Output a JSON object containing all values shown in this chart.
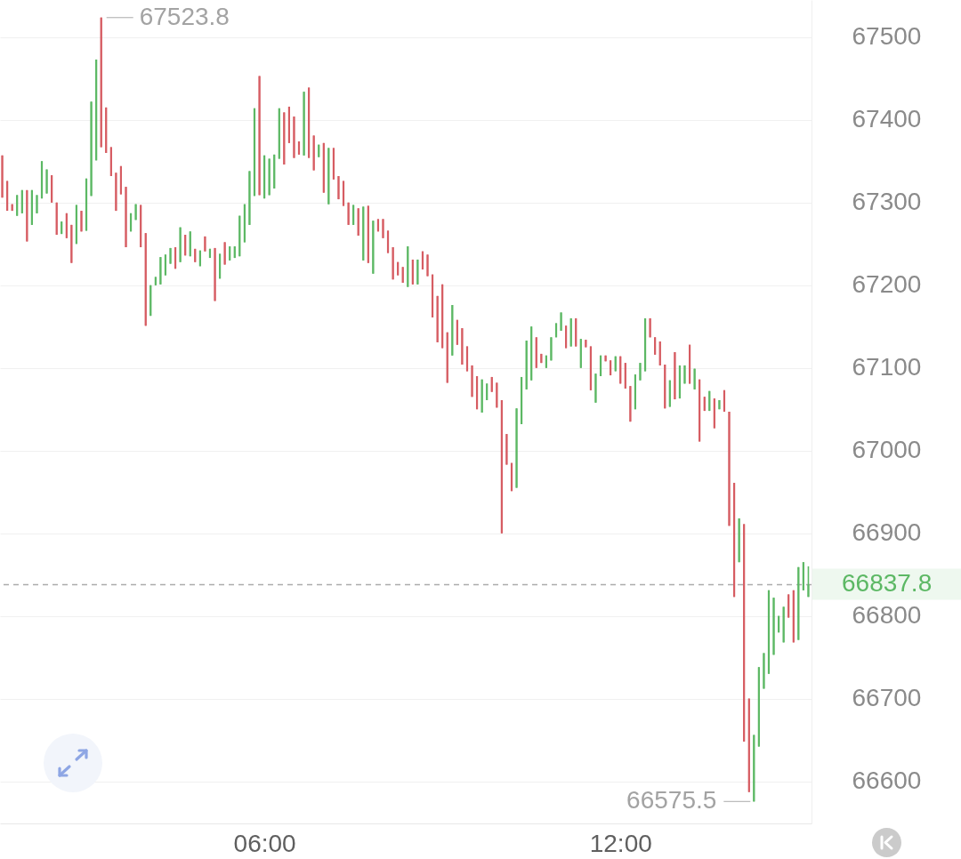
{
  "chart_data": {
    "type": "candlestick",
    "x": [
      1.583,
      1.667,
      1.75,
      1.833,
      1.917,
      2,
      2.083,
      2.167,
      2.25,
      2.333,
      2.417,
      2.5,
      2.583,
      2.667,
      2.75,
      2.833,
      2.917,
      3,
      3.083,
      3.167,
      3.25,
      3.333,
      3.417,
      3.5,
      3.583,
      3.667,
      3.75,
      3.833,
      3.917,
      4,
      4.083,
      4.167,
      4.25,
      4.333,
      4.417,
      4.5,
      4.583,
      4.667,
      4.75,
      4.833,
      4.917,
      5,
      5.083,
      5.167,
      5.25,
      5.333,
      5.417,
      5.5,
      5.583,
      5.667,
      5.75,
      5.833,
      5.917,
      6,
      6.083,
      6.167,
      6.25,
      6.333,
      6.417,
      6.5,
      6.583,
      6.667,
      6.75,
      6.833,
      6.917,
      7,
      7.083,
      7.167,
      7.25,
      7.333,
      7.417,
      7.5,
      7.583,
      7.667,
      7.75,
      7.833,
      7.917,
      8,
      8.083,
      8.167,
      8.25,
      8.333,
      8.417,
      8.5,
      8.583,
      8.667,
      8.75,
      8.833,
      8.917,
      9,
      9.083,
      9.167,
      9.25,
      9.333,
      9.417,
      9.5,
      9.583,
      9.667,
      9.75,
      9.833,
      9.917,
      10,
      10.083,
      10.167,
      10.25,
      10.333,
      10.417,
      10.5,
      10.583,
      10.667,
      10.75,
      10.833,
      10.917,
      11,
      11.083,
      11.167,
      11.25,
      11.333,
      11.417,
      11.5,
      11.583,
      11.667,
      11.75,
      11.833,
      11.917,
      12,
      12.083,
      12.167,
      12.25,
      12.333,
      12.417,
      12.5,
      12.583,
      12.667,
      12.75,
      12.833,
      12.917,
      13,
      13.083,
      13.167,
      13.25,
      13.333,
      13.417,
      13.5,
      13.583,
      13.667,
      13.75,
      13.833,
      13.917,
      14,
      14.083,
      14.167,
      14.25,
      14.333,
      14.417,
      14.5,
      14.583,
      14.667,
      14.75,
      14.833,
      14.917,
      15,
      15.083,
      15.167
    ],
    "ohlc": [
      [
        67357,
        67357,
        67306,
        67306
      ],
      [
        67326,
        67326,
        67290,
        67290
      ],
      [
        67298,
        67298,
        67290,
        67290
      ],
      [
        67284,
        67309,
        67284,
        67309
      ],
      [
        67287,
        67315,
        67287,
        67315
      ],
      [
        67315,
        67315,
        67253,
        67253
      ],
      [
        67273,
        67315,
        67273,
        67315
      ],
      [
        67287,
        67309,
        67287,
        67309
      ],
      [
        67305,
        67350,
        67305,
        67350
      ],
      [
        67311,
        67340,
        67311,
        67340
      ],
      [
        67333,
        67333,
        67300,
        67300
      ],
      [
        67300,
        67300,
        67261,
        67261
      ],
      [
        67262,
        67277,
        67262,
        67277
      ],
      [
        67287,
        67287,
        67257,
        67257
      ],
      [
        67273,
        67273,
        67227,
        67227
      ],
      [
        67250,
        67297,
        67250,
        67297
      ],
      [
        67290,
        67290,
        67265,
        67265
      ],
      [
        67266,
        67329,
        67266,
        67329
      ],
      [
        67308,
        67422,
        67308,
        67422
      ],
      [
        67351,
        67473,
        67351,
        67473
      ],
      [
        67523.8,
        67523.8,
        67367,
        67367
      ],
      [
        67415,
        67415,
        67360,
        67360
      ],
      [
        67367,
        67367,
        67332,
        67332
      ],
      [
        67336,
        67336,
        67290,
        67290
      ],
      [
        67344,
        67344,
        67310,
        67310
      ],
      [
        67319,
        67319,
        67246,
        67246
      ],
      [
        67265,
        67287,
        67265,
        67287
      ],
      [
        67279,
        67298,
        67279,
        67298
      ],
      [
        67297,
        67297,
        67246,
        67246
      ],
      [
        67263,
        67263,
        67151,
        67151
      ],
      [
        67163,
        67200,
        67163,
        67200
      ],
      [
        67200,
        67210,
        67200,
        67210
      ],
      [
        67201,
        67234,
        67201,
        67234
      ],
      [
        67212,
        67237,
        67212,
        67237
      ],
      [
        67226,
        67245,
        67226,
        67245
      ],
      [
        67246,
        67246,
        67220,
        67220
      ],
      [
        67228,
        67270,
        67228,
        67270
      ],
      [
        67261,
        67261,
        67236,
        67236
      ],
      [
        67235,
        67265,
        67235,
        67265
      ],
      [
        67244,
        67244,
        67228,
        67228
      ],
      [
        67223,
        67242,
        67223,
        67242
      ],
      [
        67259,
        67259,
        67241,
        67241
      ],
      [
        67233,
        67244,
        67233,
        67244
      ],
      [
        67245,
        67245,
        67181,
        67181
      ],
      [
        67208,
        67238,
        67208,
        67238
      ],
      [
        67252,
        67252,
        67225,
        67225
      ],
      [
        67230,
        67247,
        67230,
        67247
      ],
      [
        67233,
        67247,
        67233,
        67247
      ],
      [
        67235,
        67284,
        67235,
        67284
      ],
      [
        67252,
        67298,
        67252,
        67298
      ],
      [
        67273,
        67338,
        67273,
        67338
      ],
      [
        67308,
        67414,
        67308,
        67414
      ],
      [
        67453,
        67453,
        67309,
        67309
      ],
      [
        67305,
        67357,
        67305,
        67357
      ],
      [
        67309,
        67353,
        67309,
        67353
      ],
      [
        67317,
        67358,
        67317,
        67358
      ],
      [
        67353,
        67414,
        67353,
        67414
      ],
      [
        67409,
        67409,
        67346,
        67346
      ],
      [
        67416,
        67416,
        67372,
        67372
      ],
      [
        67404,
        67404,
        67354,
        67354
      ],
      [
        67374,
        67374,
        67358,
        67358
      ],
      [
        67357,
        67434,
        67357,
        67434
      ],
      [
        67439,
        67439,
        67354,
        67354
      ],
      [
        67381,
        67381,
        67339,
        67339
      ],
      [
        67355,
        67370,
        67355,
        67370
      ],
      [
        67372,
        67372,
        67312,
        67312
      ],
      [
        67298,
        67366,
        67298,
        67366
      ],
      [
        67366,
        67366,
        67328,
        67328
      ],
      [
        67332,
        67332,
        67304,
        67304
      ],
      [
        67326,
        67326,
        67296,
        67296
      ],
      [
        67300,
        67300,
        67273,
        67273
      ],
      [
        67273,
        67297,
        67273,
        67297
      ],
      [
        67293,
        67293,
        67260,
        67260
      ],
      [
        67230,
        67295,
        67230,
        67295
      ],
      [
        67296,
        67296,
        67227,
        67227
      ],
      [
        67214,
        67278,
        67214,
        67278
      ],
      [
        67280,
        67280,
        67265,
        67265
      ],
      [
        67280,
        67280,
        67257,
        67257
      ],
      [
        67266,
        67266,
        67239,
        67239
      ],
      [
        67246,
        67246,
        67207,
        67207
      ],
      [
        67228,
        67228,
        67212,
        67212
      ],
      [
        67222,
        67222,
        67203,
        67203
      ],
      [
        67198,
        67247,
        67198,
        67247
      ],
      [
        67231,
        67231,
        67201,
        67201
      ],
      [
        67201,
        67231,
        67201,
        67231
      ],
      [
        67241,
        67241,
        67219,
        67219
      ],
      [
        67237,
        67237,
        67211,
        67211
      ],
      [
        67213,
        67213,
        67161,
        67161
      ],
      [
        67187,
        67187,
        67131,
        67131
      ],
      [
        67201,
        67201,
        67124,
        67124
      ],
      [
        67143,
        67143,
        67082,
        67082
      ],
      [
        67115,
        67176,
        67115,
        67176
      ],
      [
        67158,
        67158,
        67128,
        67128
      ],
      [
        67148,
        67148,
        67104,
        67104
      ],
      [
        67126,
        67126,
        67096,
        67096
      ],
      [
        67103,
        67103,
        67065,
        67065
      ],
      [
        67090,
        67090,
        67050,
        67050
      ],
      [
        67046,
        67086,
        67046,
        67086
      ],
      [
        67061,
        67081,
        67061,
        67081
      ],
      [
        67089,
        67089,
        67071,
        67071
      ],
      [
        67082,
        67082,
        67052,
        67052
      ],
      [
        67061,
        67061,
        66900,
        66900
      ],
      [
        67020,
        67020,
        66983,
        66983
      ],
      [
        66985,
        66985,
        66951,
        66951
      ],
      [
        66955,
        67051,
        66955,
        67051
      ],
      [
        67032,
        67089,
        67032,
        67089
      ],
      [
        67074,
        67133,
        67074,
        67133
      ],
      [
        67085,
        67150,
        67085,
        67150
      ],
      [
        67137,
        67137,
        67100,
        67100
      ],
      [
        67117,
        67117,
        67106,
        67106
      ],
      [
        67100,
        67115,
        67100,
        67115
      ],
      [
        67109,
        67137,
        67109,
        67137
      ],
      [
        67137,
        67154,
        67137,
        67154
      ],
      [
        67145,
        67167,
        67145,
        67167
      ],
      [
        67151,
        67151,
        67124,
        67124
      ],
      [
        67126,
        67160,
        67126,
        67160
      ],
      [
        67160,
        67160,
        67126,
        67126
      ],
      [
        67100,
        67135,
        67100,
        67135
      ],
      [
        67134,
        67134,
        67125,
        67125
      ],
      [
        67126,
        67126,
        67073,
        67073
      ],
      [
        67058,
        67093,
        67058,
        67093
      ],
      [
        67090,
        67115,
        67090,
        67115
      ],
      [
        67115,
        67115,
        67108,
        67108
      ],
      [
        67109,
        67109,
        67091,
        67091
      ],
      [
        67096,
        67114,
        67096,
        67114
      ],
      [
        67114,
        67114,
        67081,
        67081
      ],
      [
        67106,
        67106,
        67075,
        67075
      ],
      [
        67078,
        67078,
        67035,
        67035
      ],
      [
        67050,
        67092,
        67050,
        67092
      ],
      [
        67085,
        67106,
        67085,
        67106
      ],
      [
        67096,
        67160,
        67096,
        67160
      ],
      [
        67160,
        67160,
        67137,
        67137
      ],
      [
        67137,
        67137,
        67116,
        67116
      ],
      [
        67132,
        67132,
        67103,
        67103
      ],
      [
        67104,
        67104,
        67051,
        67051
      ],
      [
        67053,
        67085,
        67053,
        67085
      ],
      [
        67119,
        67119,
        67062,
        67062
      ],
      [
        67063,
        67103,
        67063,
        67103
      ],
      [
        67081,
        67103,
        67081,
        67103
      ],
      [
        67128,
        67128,
        67081,
        67081
      ],
      [
        67074,
        67099,
        67074,
        67099
      ],
      [
        67086,
        67086,
        67011,
        67011
      ],
      [
        67065,
        67065,
        67048,
        67048
      ],
      [
        67048,
        67072,
        67048,
        67072
      ],
      [
        67063,
        67063,
        67027,
        67027
      ],
      [
        67050,
        67061,
        67050,
        67061
      ],
      [
        67073,
        67073,
        67047,
        67047
      ],
      [
        67047,
        67047,
        66909,
        66909
      ],
      [
        66961,
        66961,
        66823,
        66823
      ],
      [
        66865,
        66918,
        66865,
        66918
      ],
      [
        66911,
        66911,
        66648,
        66648
      ],
      [
        66700,
        66700,
        66587,
        66587
      ],
      [
        66575.5,
        66656,
        66575.5,
        66656
      ],
      [
        66642,
        66738,
        66642,
        66738
      ],
      [
        66712,
        66755,
        66712,
        66755
      ],
      [
        66730,
        66831,
        66730,
        66831
      ],
      [
        66753,
        66822,
        66753,
        66822
      ],
      [
        66780,
        66800,
        66780,
        66800
      ],
      [
        66768,
        66811,
        66768,
        66811
      ],
      [
        66826,
        66826,
        66798,
        66798
      ],
      [
        66831,
        66831,
        66768,
        66768
      ],
      [
        66771,
        66859,
        66771,
        66859
      ],
      [
        66831,
        66865,
        66831,
        66865
      ],
      [
        66823,
        66860,
        66823,
        66837.8
      ]
    ],
    "colors": [
      "#d65c62",
      "#d65c62",
      "#d65c62",
      "#5cb864",
      "#5cb864",
      "#d65c62",
      "#5cb864",
      "#5cb864",
      "#5cb864",
      "#5cb864",
      "#d65c62",
      "#d65c62",
      "#5cb864",
      "#d65c62",
      "#d65c62",
      "#5cb864",
      "#d65c62",
      "#5cb864",
      "#5cb864",
      "#5cb864",
      "#d65c62",
      "#d65c62",
      "#d65c62",
      "#d65c62",
      "#d65c62",
      "#d65c62",
      "#5cb864",
      "#5cb864",
      "#d65c62",
      "#d65c62",
      "#5cb864",
      "#5cb864",
      "#5cb864",
      "#5cb864",
      "#5cb864",
      "#d65c62",
      "#5cb864",
      "#d65c62",
      "#5cb864",
      "#d65c62",
      "#5cb864",
      "#d65c62",
      "#5cb864",
      "#d65c62",
      "#5cb864",
      "#d65c62",
      "#5cb864",
      "#5cb864",
      "#5cb864",
      "#5cb864",
      "#5cb864",
      "#5cb864",
      "#d65c62",
      "#5cb864",
      "#5cb864",
      "#5cb864",
      "#5cb864",
      "#d65c62",
      "#d65c62",
      "#d65c62",
      "#d65c62",
      "#5cb864",
      "#d65c62",
      "#d65c62",
      "#5cb864",
      "#d65c62",
      "#5cb864",
      "#d65c62",
      "#d65c62",
      "#d65c62",
      "#d65c62",
      "#5cb864",
      "#d65c62",
      "#5cb864",
      "#d65c62",
      "#5cb864",
      "#d65c62",
      "#d65c62",
      "#d65c62",
      "#d65c62",
      "#d65c62",
      "#d65c62",
      "#5cb864",
      "#d65c62",
      "#5cb864",
      "#d65c62",
      "#d65c62",
      "#d65c62",
      "#d65c62",
      "#d65c62",
      "#d65c62",
      "#5cb864",
      "#d65c62",
      "#d65c62",
      "#d65c62",
      "#d65c62",
      "#d65c62",
      "#5cb864",
      "#5cb864",
      "#d65c62",
      "#d65c62",
      "#d65c62",
      "#d65c62",
      "#d65c62",
      "#5cb864",
      "#5cb864",
      "#5cb864",
      "#5cb864",
      "#d65c62",
      "#d65c62",
      "#5cb864",
      "#5cb864",
      "#5cb864",
      "#5cb864",
      "#d65c62",
      "#5cb864",
      "#d65c62",
      "#5cb864",
      "#d65c62",
      "#d65c62",
      "#5cb864",
      "#5cb864",
      "#d65c62",
      "#d65c62",
      "#5cb864",
      "#d65c62",
      "#d65c62",
      "#d65c62",
      "#5cb864",
      "#5cb864",
      "#5cb864",
      "#d65c62",
      "#d65c62",
      "#d65c62",
      "#d65c62",
      "#5cb864",
      "#d65c62",
      "#5cb864",
      "#5cb864",
      "#d65c62",
      "#5cb864",
      "#d65c62",
      "#d65c62",
      "#5cb864",
      "#d65c62",
      "#5cb864",
      "#d65c62",
      "#d65c62",
      "#d65c62",
      "#5cb864",
      "#d65c62",
      "#d65c62",
      "#5cb864",
      "#5cb864",
      "#5cb864",
      "#5cb864",
      "#5cb864",
      "#5cb864",
      "#5cb864",
      "#d65c62",
      "#d65c62",
      "#5cb864",
      "#5cb864",
      "#5cb864"
    ],
    "xlim": [
      1.545,
      15.22
    ],
    "xticks": [
      {
        "value": 6,
        "label": "06:00"
      },
      {
        "value": 12,
        "label": "12:00"
      }
    ],
    "ylim": [
      66549,
      67545
    ],
    "yticks": [
      66600,
      66700,
      66800,
      66900,
      67000,
      67100,
      67200,
      67300,
      67400,
      67500
    ],
    "grid": "y",
    "ref_lines": [
      {
        "axis": "y",
        "value": 66837.8,
        "label": "66837.8",
        "color": "#ababab",
        "line_style": "dashed"
      }
    ],
    "annotations": [
      {
        "text": "67523.8",
        "x": 3.25,
        "y": 67523.8
      },
      {
        "text": "66575.5",
        "x": 14.25,
        "y": 66575.5
      }
    ]
  }
}
